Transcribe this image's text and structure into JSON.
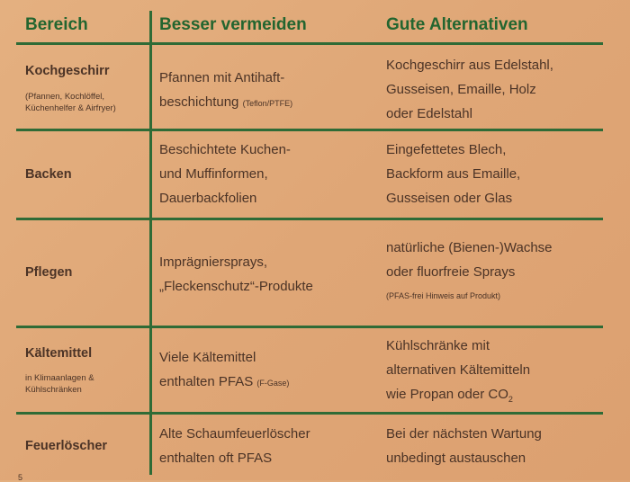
{
  "header": {
    "col1": "Bereich",
    "col2": "Besser vermeiden",
    "col3": "Gute Alternativen"
  },
  "rows": [
    {
      "area": "Kochgeschirr",
      "area_note": [
        "(Pfannen, Kochlöffel,",
        "Küchenhelfer & Airfryer)"
      ],
      "avoid": [
        "Pfannen mit Antihaft-",
        "beschichtung"
      ],
      "avoid_note": "(Teflon/PTFE)",
      "alt": [
        "Kochgeschirr aus Edelstahl,",
        "Gusseisen, Emaille, Holz",
        "oder Edelstahl"
      ]
    },
    {
      "area": "Backen",
      "avoid": [
        "Beschichtete Kuchen-",
        "und Muffinformen,",
        "Dauerbackfolien"
      ],
      "alt": [
        "Eingefettetes Blech,",
        "Backform aus Emaille,",
        "Gusseisen oder Glas"
      ]
    },
    {
      "area": "Pflegen",
      "avoid": [
        "Imprägniersprays,",
        "„Fleckenschutz“-Produkte"
      ],
      "alt": [
        "natürliche (Bienen-)Wachse",
        "oder fluorfreie Sprays"
      ],
      "alt_note": "(PFAS-frei Hinweis auf Produkt)"
    },
    {
      "area": "Kältemittel",
      "area_note": [
        "in Klimaanlagen &",
        "Kühlschränken"
      ],
      "avoid": [
        "Viele Kältemittel",
        "enthalten PFAS"
      ],
      "avoid_note": "(F-Gase)",
      "alt": [
        "Kühlschränke mit",
        "alternativen Kältemitteln",
        "wie Propan oder CO"
      ],
      "alt_subscript": "2"
    },
    {
      "area": "Feuerlöscher",
      "avoid": [
        "Alte Schaumfeuerlöscher",
        "enthalten oft PFAS"
      ],
      "alt": [
        "Bei der nächsten Wartung",
        "unbedingt austauschen"
      ]
    }
  ],
  "page_number": "5",
  "colors": {
    "accent": "#2f6b36",
    "background": "#dfa676",
    "text": "#4b3326"
  }
}
